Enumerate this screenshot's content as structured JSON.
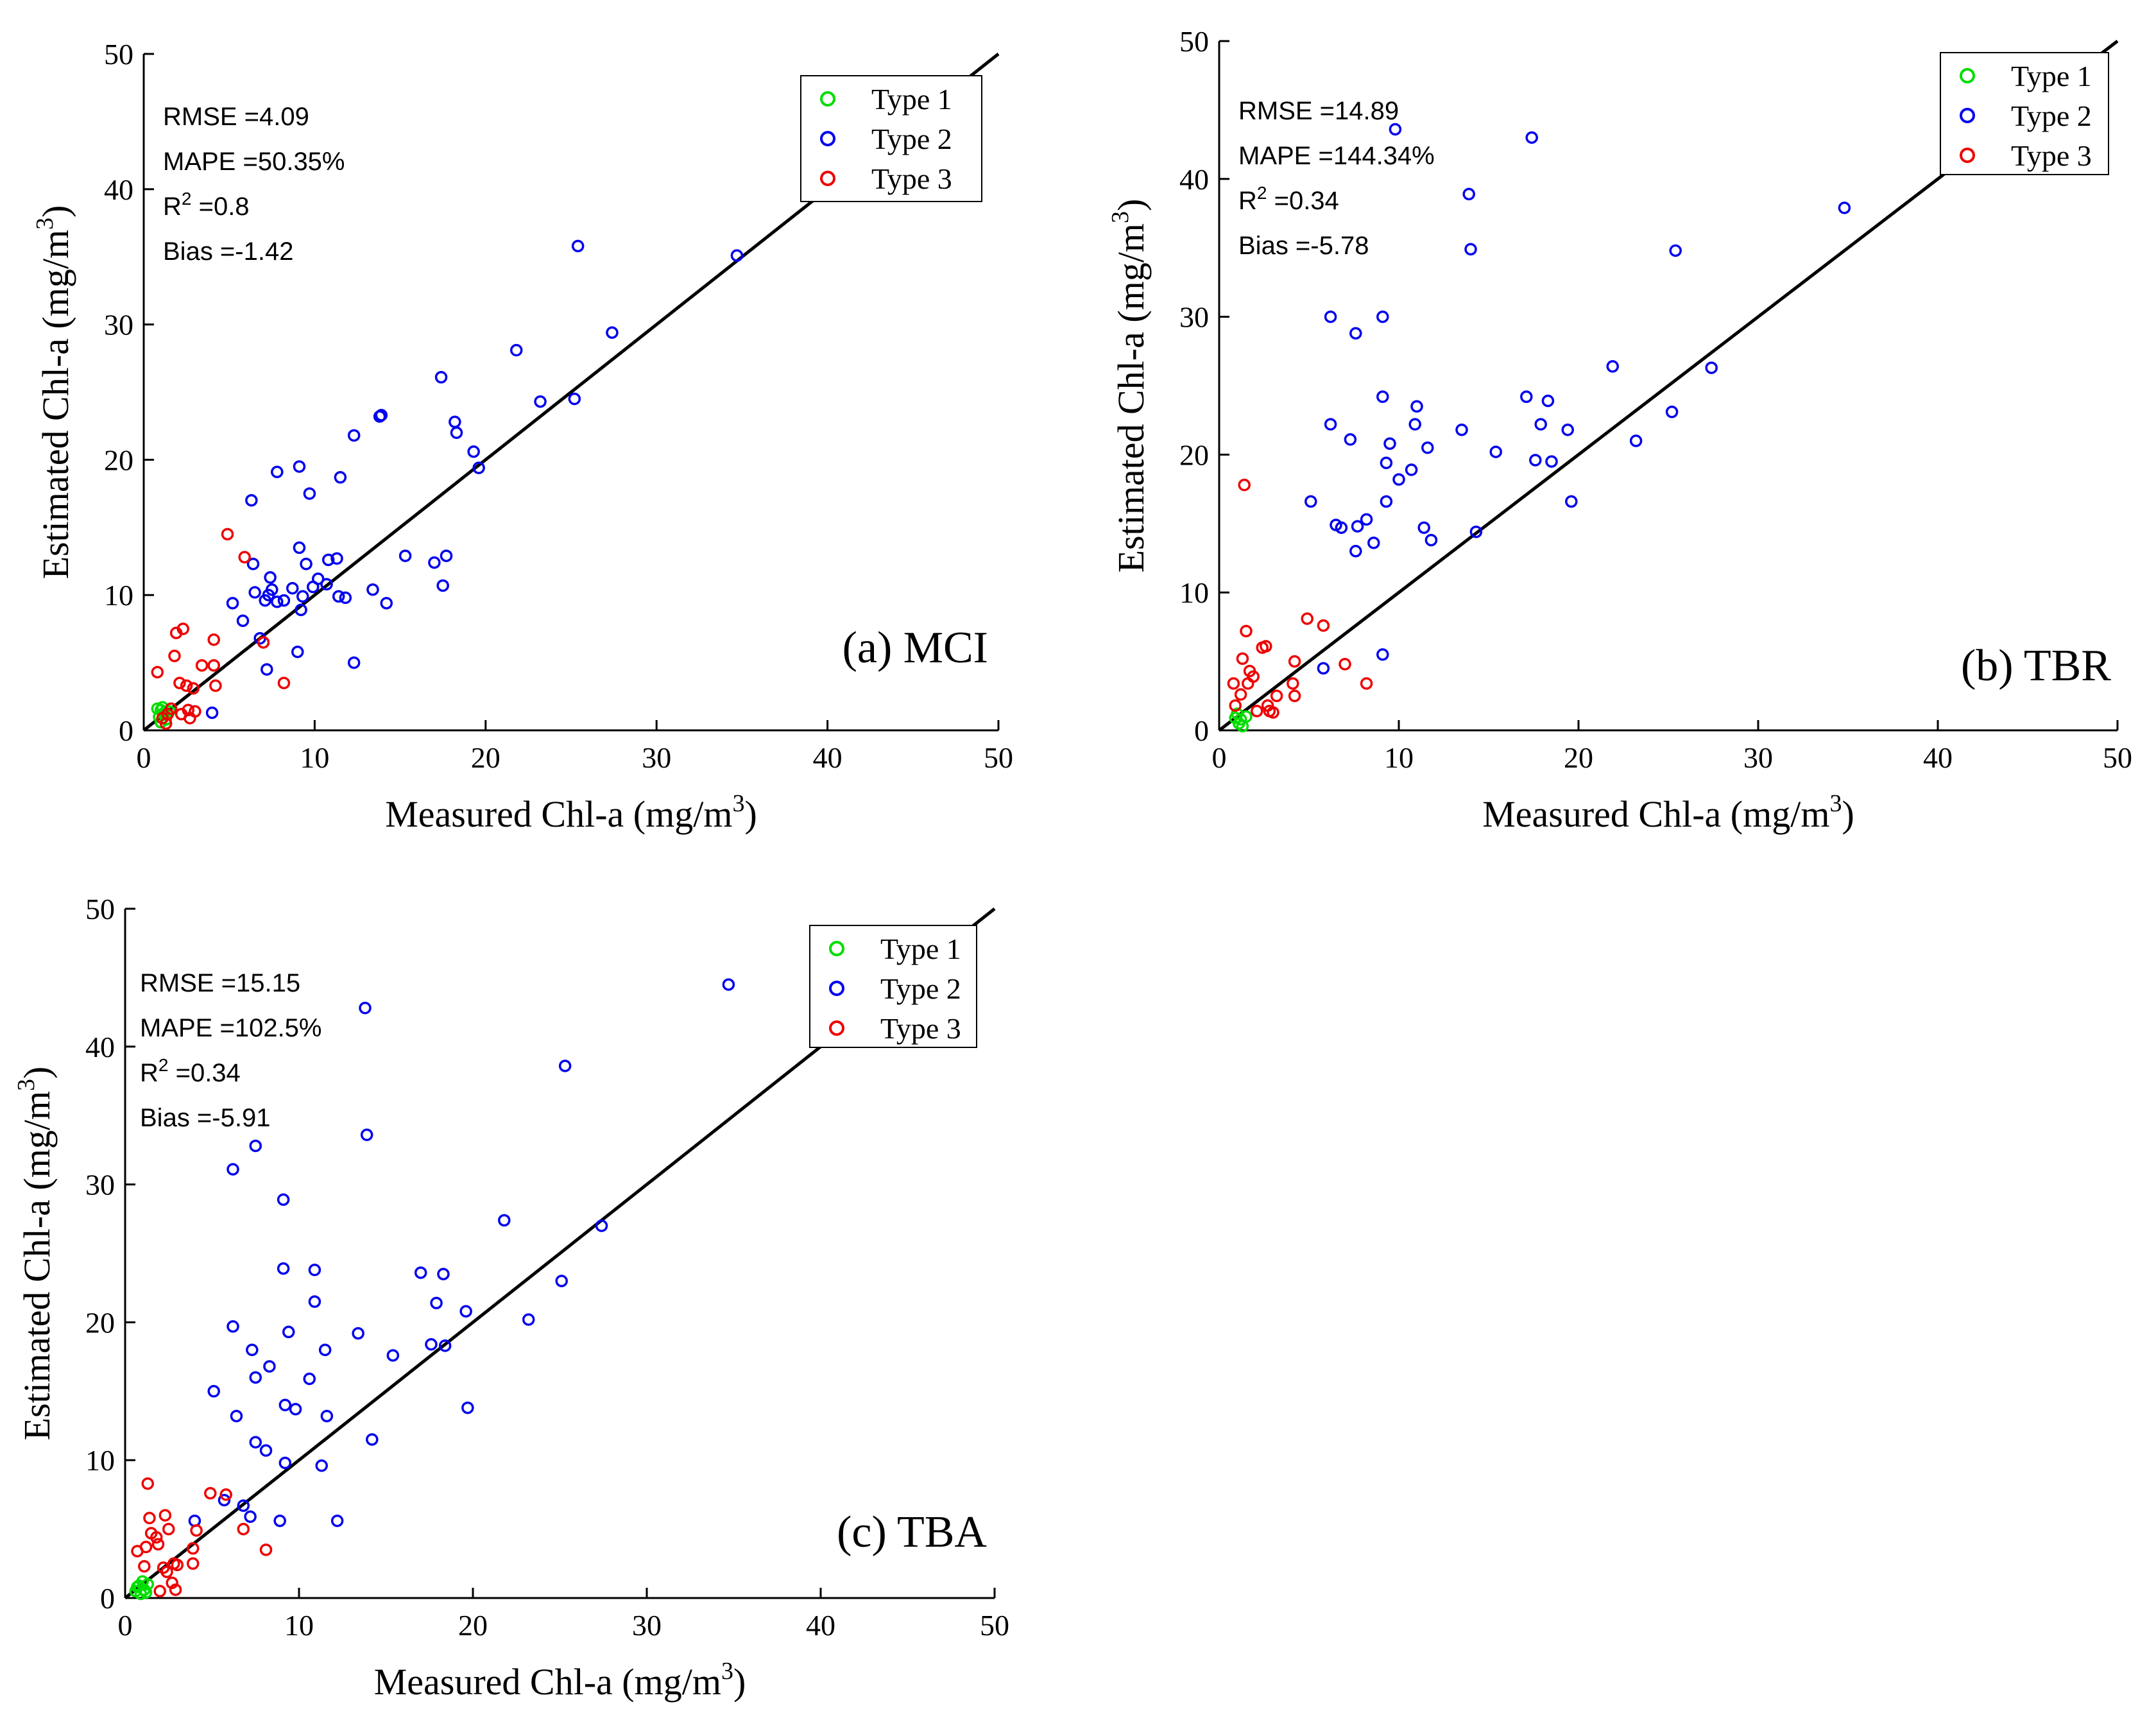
{
  "chart_data": [
    {
      "type": "scatter",
      "panel_label": "(a) MCI",
      "xlabel": "Measured Chl-a (mg/m",
      "ylabel": "Estimated Chl-a (mg/m",
      "unit_exponent": "3",
      "unit_close": ")",
      "xlim": [
        0,
        50
      ],
      "ylim": [
        0,
        50
      ],
      "xticks": [
        0,
        10,
        20,
        30,
        40,
        50
      ],
      "yticks": [
        0,
        10,
        20,
        30,
        40,
        50
      ],
      "reference_line": "1:1",
      "legend_position": "top-right",
      "stats": [
        {
          "label": "RMSE =4.09"
        },
        {
          "label": "MAPE =50.35%"
        },
        {
          "label": "R",
          "sup": "2",
          "rest": " =0.8"
        },
        {
          "label": "Bias =-1.42"
        }
      ],
      "series": [
        {
          "name": "Type 1",
          "color": "#00dd00",
          "points": [
            [
              0.8,
              1.6
            ],
            [
              1.0,
              1.5
            ],
            [
              1.2,
              1.3
            ],
            [
              0.9,
              1.0
            ],
            [
              1.3,
              0.8
            ],
            [
              1.1,
              1.7
            ],
            [
              1.5,
              1.4
            ],
            [
              1.0,
              0.6
            ]
          ]
        },
        {
          "name": "Type 2",
          "color": "#0000ee",
          "points": [
            [
              34.7,
              35.1
            ],
            [
              25.4,
              35.8
            ],
            [
              27.4,
              29.4
            ],
            [
              25.2,
              24.5
            ],
            [
              23.2,
              24.3
            ],
            [
              21.8,
              28.1
            ],
            [
              17.4,
              26.1
            ],
            [
              18.2,
              22.8
            ],
            [
              18.3,
              22.0
            ],
            [
              19.3,
              20.6
            ],
            [
              19.6,
              19.4
            ],
            [
              13.8,
              23.2
            ],
            [
              13.9,
              23.3
            ],
            [
              12.3,
              21.8
            ],
            [
              11.5,
              18.7
            ],
            [
              9.1,
              19.5
            ],
            [
              9.7,
              17.5
            ],
            [
              7.8,
              19.1
            ],
            [
              6.3,
              17.0
            ],
            [
              15.3,
              12.9
            ],
            [
              17.0,
              12.4
            ],
            [
              17.7,
              12.9
            ],
            [
              17.5,
              10.7
            ],
            [
              13.4,
              10.4
            ],
            [
              14.2,
              9.4
            ],
            [
              12.3,
              5.0
            ],
            [
              11.8,
              9.8
            ],
            [
              11.3,
              12.7
            ],
            [
              10.8,
              12.6
            ],
            [
              11.4,
              9.9
            ],
            [
              10.7,
              10.8
            ],
            [
              10.2,
              11.2
            ],
            [
              9.9,
              10.6
            ],
            [
              9.5,
              12.3
            ],
            [
              9.3,
              9.9
            ],
            [
              9.2,
              8.9
            ],
            [
              9.0,
              5.8
            ],
            [
              8.7,
              10.5
            ],
            [
              8.2,
              9.6
            ],
            [
              7.8,
              9.5
            ],
            [
              7.5,
              10.4
            ],
            [
              7.3,
              10.0
            ],
            [
              7.1,
              9.6
            ],
            [
              7.4,
              11.3
            ],
            [
              6.4,
              12.3
            ],
            [
              6.5,
              10.2
            ],
            [
              6.8,
              6.8
            ],
            [
              7.2,
              4.5
            ],
            [
              5.8,
              8.1
            ],
            [
              5.2,
              9.4
            ],
            [
              4.0,
              1.3
            ],
            [
              9.1,
              13.5
            ]
          ]
        },
        {
          "name": "Type 3",
          "color": "#ee0000",
          "points": [
            [
              4.9,
              14.5
            ],
            [
              5.9,
              12.8
            ],
            [
              2.3,
              7.5
            ],
            [
              1.9,
              7.2
            ],
            [
              1.8,
              5.5
            ],
            [
              0.8,
              4.3
            ],
            [
              2.1,
              3.5
            ],
            [
              2.5,
              3.3
            ],
            [
              2.9,
              3.1
            ],
            [
              3.4,
              4.8
            ],
            [
              4.1,
              6.7
            ],
            [
              4.1,
              4.8
            ],
            [
              4.2,
              3.3
            ],
            [
              7.0,
              6.5
            ],
            [
              8.2,
              3.5
            ],
            [
              3.0,
              1.4
            ],
            [
              2.6,
              1.5
            ],
            [
              2.2,
              1.2
            ],
            [
              1.6,
              1.6
            ],
            [
              1.4,
              1.2
            ],
            [
              1.1,
              0.9
            ],
            [
              1.3,
              0.5
            ],
            [
              2.7,
              0.9
            ]
          ]
        }
      ]
    },
    {
      "type": "scatter",
      "panel_label": "(b) TBR",
      "xlabel": "Measured Chl-a (mg/m",
      "ylabel": "Estimated Chl-a (mg/m",
      "unit_exponent": "3",
      "unit_close": ")",
      "xlim": [
        0,
        50
      ],
      "ylim": [
        0,
        50
      ],
      "xticks": [
        0,
        10,
        20,
        30,
        40,
        50
      ],
      "yticks": [
        0,
        10,
        20,
        30,
        40,
        50
      ],
      "reference_line": "1:1",
      "legend_position": "top-right",
      "stats": [
        {
          "label": "RMSE =14.89"
        },
        {
          "label": "MAPE =144.34%"
        },
        {
          "label": "R",
          "sup": "2",
          "rest": " =0.34"
        },
        {
          "label": "Bias =-5.78"
        }
      ],
      "series": [
        {
          "name": "Type 1",
          "color": "#00dd00",
          "points": [
            [
              1.0,
              1.2
            ],
            [
              1.2,
              0.8
            ],
            [
              1.3,
              0.3
            ],
            [
              0.9,
              0.9
            ],
            [
              1.5,
              1.0
            ],
            [
              1.1,
              0.5
            ]
          ]
        },
        {
          "name": "Type 2",
          "color": "#0000ee",
          "points": [
            [
              9.8,
              43.6
            ],
            [
              17.4,
              43.0
            ],
            [
              13.9,
              38.9
            ],
            [
              14.0,
              34.9
            ],
            [
              34.8,
              37.9
            ],
            [
              25.4,
              34.8
            ],
            [
              6.2,
              30.0
            ],
            [
              9.1,
              30.0
            ],
            [
              7.6,
              28.8
            ],
            [
              21.9,
              26.4
            ],
            [
              27.4,
              26.3
            ],
            [
              9.1,
              24.2
            ],
            [
              17.1,
              24.2
            ],
            [
              18.3,
              23.9
            ],
            [
              11.0,
              23.5
            ],
            [
              10.9,
              22.2
            ],
            [
              6.2,
              22.2
            ],
            [
              17.9,
              22.2
            ],
            [
              19.4,
              21.8
            ],
            [
              13.5,
              21.8
            ],
            [
              7.3,
              21.1
            ],
            [
              9.5,
              20.8
            ],
            [
              11.6,
              20.5
            ],
            [
              15.4,
              20.2
            ],
            [
              17.6,
              19.6
            ],
            [
              18.5,
              19.5
            ],
            [
              9.3,
              19.4
            ],
            [
              10.7,
              18.9
            ],
            [
              10.0,
              18.2
            ],
            [
              23.2,
              21.0
            ],
            [
              25.2,
              23.1
            ],
            [
              5.1,
              16.6
            ],
            [
              9.3,
              16.6
            ],
            [
              19.6,
              16.6
            ],
            [
              8.2,
              15.3
            ],
            [
              6.5,
              14.9
            ],
            [
              6.8,
              14.7
            ],
            [
              7.7,
              14.8
            ],
            [
              11.4,
              14.7
            ],
            [
              14.3,
              14.4
            ],
            [
              11.8,
              13.8
            ],
            [
              8.6,
              13.6
            ],
            [
              7.6,
              13.0
            ],
            [
              9.1,
              5.5
            ],
            [
              5.8,
              4.5
            ]
          ]
        },
        {
          "name": "Type 3",
          "color": "#ee0000",
          "points": [
            [
              1.4,
              17.8
            ],
            [
              1.5,
              7.2
            ],
            [
              4.9,
              8.1
            ],
            [
              5.8,
              7.6
            ],
            [
              2.6,
              6.1
            ],
            [
              2.4,
              6.0
            ],
            [
              1.3,
              5.2
            ],
            [
              1.7,
              4.3
            ],
            [
              1.9,
              3.9
            ],
            [
              0.8,
              3.4
            ],
            [
              1.6,
              3.4
            ],
            [
              4.2,
              5.0
            ],
            [
              7.0,
              4.8
            ],
            [
              4.1,
              3.4
            ],
            [
              4.2,
              2.5
            ],
            [
              8.2,
              3.4
            ],
            [
              3.2,
              2.5
            ],
            [
              2.7,
              1.8
            ],
            [
              3.0,
              1.3
            ],
            [
              2.1,
              1.4
            ],
            [
              2.8,
              1.4
            ],
            [
              0.9,
              1.8
            ],
            [
              1.2,
              2.6
            ]
          ]
        }
      ]
    },
    {
      "type": "scatter",
      "panel_label": "(c) TBA",
      "xlabel": "Measured Chl-a (mg/m",
      "ylabel": "Estimated Chl-a (mg/m",
      "unit_exponent": "3",
      "unit_close": ")",
      "xlim": [
        0,
        50
      ],
      "ylim": [
        0,
        50
      ],
      "xticks": [
        0,
        10,
        20,
        30,
        40,
        50
      ],
      "yticks": [
        0,
        10,
        20,
        30,
        40,
        50
      ],
      "reference_line": "1:1",
      "legend_position": "top-right",
      "stats": [
        {
          "label": "RMSE =15.15"
        },
        {
          "label": "MAPE =102.5%"
        },
        {
          "label": "R",
          "sup": "2",
          "rest": " =0.34"
        },
        {
          "label": "Bias =-5.91"
        }
      ],
      "series": [
        {
          "name": "Type 1",
          "color": "#00dd00",
          "points": [
            [
              0.6,
              0.5
            ],
            [
              0.8,
              0.9
            ],
            [
              1.0,
              1.2
            ],
            [
              1.1,
              0.6
            ],
            [
              0.9,
              0.3
            ],
            [
              1.3,
              1.0
            ],
            [
              1.2,
              0.4
            ],
            [
              0.7,
              0.8
            ]
          ]
        },
        {
          "name": "Type 2",
          "color": "#0000ee",
          "points": [
            [
              34.7,
              44.5
            ],
            [
              13.8,
              42.8
            ],
            [
              25.3,
              38.6
            ],
            [
              13.9,
              33.6
            ],
            [
              7.5,
              32.8
            ],
            [
              6.2,
              31.1
            ],
            [
              9.1,
              28.9
            ],
            [
              27.4,
              27.0
            ],
            [
              21.8,
              27.4
            ],
            [
              9.1,
              23.9
            ],
            [
              10.9,
              23.8
            ],
            [
              17.0,
              23.6
            ],
            [
              18.3,
              23.5
            ],
            [
              19.6,
              20.8
            ],
            [
              25.1,
              23.0
            ],
            [
              10.9,
              21.5
            ],
            [
              17.9,
              21.4
            ],
            [
              23.2,
              20.2
            ],
            [
              6.2,
              19.7
            ],
            [
              9.4,
              19.3
            ],
            [
              13.4,
              19.2
            ],
            [
              17.6,
              18.4
            ],
            [
              18.4,
              18.3
            ],
            [
              7.3,
              18.0
            ],
            [
              11.5,
              18.0
            ],
            [
              15.4,
              17.6
            ],
            [
              8.3,
              16.8
            ],
            [
              7.5,
              16.0
            ],
            [
              10.6,
              15.9
            ],
            [
              5.1,
              15.0
            ],
            [
              9.2,
              14.0
            ],
            [
              9.8,
              13.7
            ],
            [
              19.7,
              13.8
            ],
            [
              6.4,
              13.2
            ],
            [
              11.6,
              13.2
            ],
            [
              7.5,
              11.3
            ],
            [
              14.2,
              11.5
            ],
            [
              8.1,
              10.7
            ],
            [
              9.2,
              9.8
            ],
            [
              11.3,
              9.6
            ],
            [
              5.7,
              7.1
            ],
            [
              6.8,
              6.7
            ],
            [
              7.2,
              5.9
            ],
            [
              4.0,
              5.6
            ],
            [
              8.9,
              5.6
            ],
            [
              12.2,
              5.6
            ]
          ]
        },
        {
          "name": "Type 3",
          "color": "#ee0000",
          "points": [
            [
              1.3,
              8.3
            ],
            [
              4.9,
              7.6
            ],
            [
              5.8,
              7.5
            ],
            [
              1.4,
              5.8
            ],
            [
              2.3,
              6.0
            ],
            [
              2.5,
              5.0
            ],
            [
              1.5,
              4.7
            ],
            [
              1.8,
              4.4
            ],
            [
              4.1,
              4.9
            ],
            [
              6.8,
              5.0
            ],
            [
              1.2,
              3.7
            ],
            [
              1.9,
              3.9
            ],
            [
              0.7,
              3.4
            ],
            [
              3.9,
              3.6
            ],
            [
              8.1,
              3.5
            ],
            [
              2.8,
              2.5
            ],
            [
              2.2,
              2.2
            ],
            [
              1.1,
              2.3
            ],
            [
              3.0,
              2.4
            ],
            [
              3.9,
              2.5
            ],
            [
              2.4,
              1.9
            ],
            [
              2.7,
              1.1
            ],
            [
              2.9,
              0.6
            ],
            [
              2.0,
              0.5
            ]
          ]
        }
      ]
    }
  ]
}
